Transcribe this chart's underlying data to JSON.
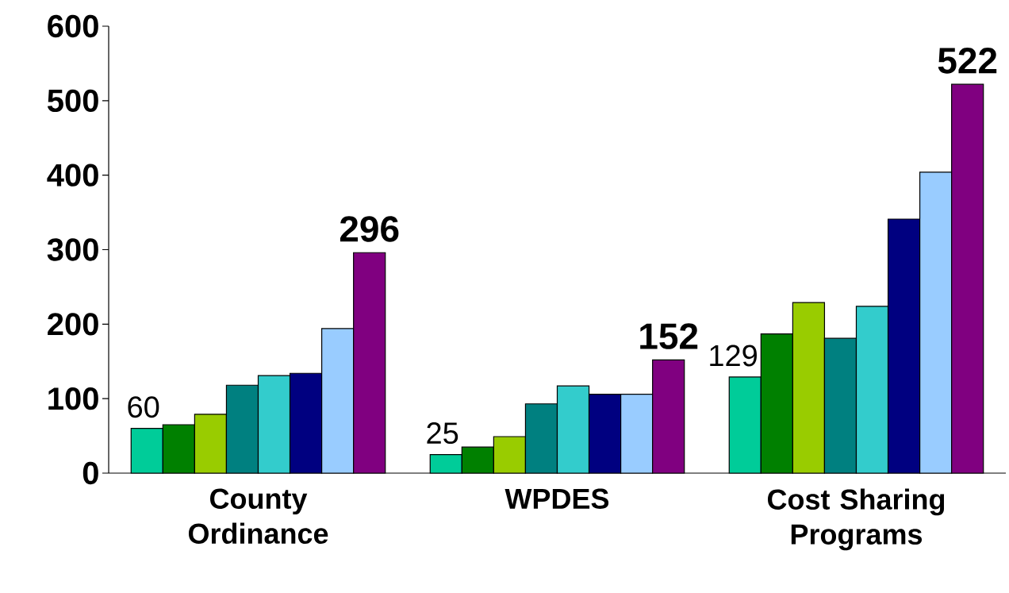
{
  "chart_data": {
    "type": "bar",
    "categories": [
      "County Ordinance",
      "WPDES",
      "Cost Sharing Programs"
    ],
    "series": [
      {
        "color": "#00cc99",
        "values": [
          60,
          25,
          129
        ],
        "value_labels": [
          "60",
          "25",
          "129"
        ]
      },
      {
        "color": "#008000",
        "values": [
          65,
          35,
          187
        ]
      },
      {
        "color": "#99cc00",
        "values": [
          79,
          49,
          229
        ]
      },
      {
        "color": "#008080",
        "values": [
          118,
          93,
          181
        ]
      },
      {
        "color": "#33cccc",
        "values": [
          131,
          117,
          224
        ]
      },
      {
        "color": "#000080",
        "values": [
          134,
          106,
          341
        ]
      },
      {
        "color": "#99ccff",
        "values": [
          194,
          106,
          404
        ]
      },
      {
        "color": "#800080",
        "values": [
          296,
          152,
          522
        ],
        "value_labels": [
          "296",
          "152",
          "522"
        ]
      }
    ],
    "ylim": [
      0,
      600
    ],
    "yticks": [
      0,
      100,
      200,
      300,
      400,
      500,
      600
    ],
    "grid": false
  }
}
